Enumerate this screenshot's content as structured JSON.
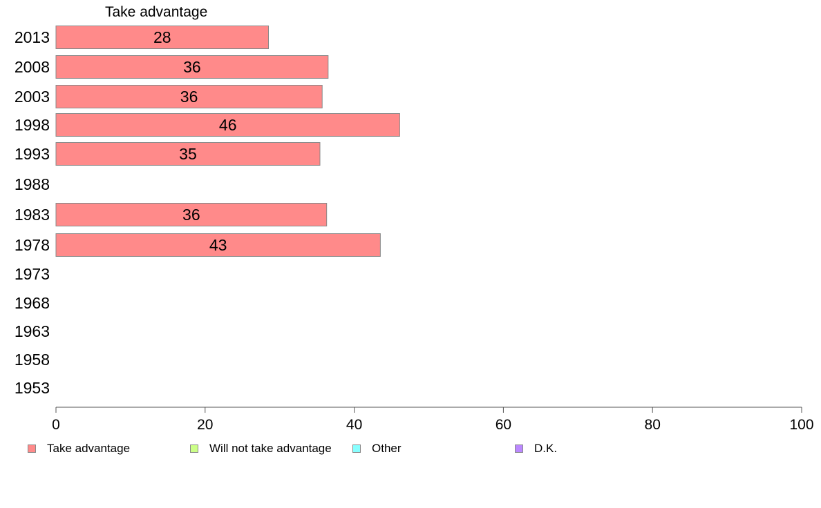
{
  "chart_data": {
    "type": "bar",
    "orientation": "horizontal",
    "series_title": "Take advantage",
    "categories": [
      "2013",
      "2008",
      "2003",
      "1998",
      "1993",
      "1988",
      "1983",
      "1978",
      "1973",
      "1968",
      "1963",
      "1958",
      "1953"
    ],
    "series": [
      {
        "name": "Take advantage",
        "color": "#ff8a8a",
        "values": [
          28.5,
          36.5,
          35.7,
          46.1,
          35.4,
          null,
          36.3,
          43.5,
          null,
          null,
          null,
          null,
          null
        ],
        "labels": [
          "28",
          "36",
          "36",
          "46",
          "35",
          "",
          "36",
          "43",
          "",
          "",
          "",
          "",
          ""
        ]
      }
    ],
    "xlim": [
      0,
      100
    ],
    "xticks": [
      "0",
      "20",
      "40",
      "60",
      "80",
      "100"
    ],
    "legend": [
      {
        "label": "Take advantage",
        "color": "#ff8a8a"
      },
      {
        "label": "Will not take advantage",
        "color": "#ccff88"
      },
      {
        "label": "Other",
        "color": "#88ffff"
      },
      {
        "label": "D.K.",
        "color": "#bb88ff"
      }
    ],
    "legend_position": "bottom"
  }
}
